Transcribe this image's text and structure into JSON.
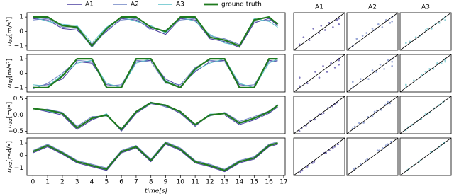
{
  "chart_data": [
    {
      "type": "line",
      "ylabel": {
        "symbol": "u",
        "sub": "ax",
        "unit": "[m/s²]"
      },
      "x": [
        0,
        1,
        2,
        3,
        4,
        5,
        6,
        7,
        8,
        9,
        10,
        11,
        12,
        13,
        14,
        15,
        16,
        16.6
      ],
      "xlim": [
        -0.4,
        17.1
      ],
      "ylim": [
        -1.3,
        1.3
      ],
      "yticks": [
        {
          "value": -1,
          "label": "−1"
        },
        0,
        1
      ],
      "series": [
        {
          "name": "A1",
          "color": "#4a3f9f",
          "width": 1,
          "values": [
            0.9,
            0.8,
            0.2,
            0.1,
            -0.9,
            0,
            0.9,
            0.8,
            0.2,
            -0.2,
            0.9,
            0.8,
            -0.5,
            -0.7,
            -1.1,
            0.6,
            0.9,
            0.4
          ]
        },
        {
          "name": "A2",
          "color": "#6d82c4",
          "width": 1,
          "values": [
            0.8,
            0.9,
            0.3,
            0.2,
            -1.1,
            0.1,
            0.8,
            0.9,
            0.1,
            0.1,
            0.8,
            0.9,
            -0.3,
            -0.5,
            -0.9,
            0.7,
            0.8,
            0.6
          ]
        },
        {
          "name": "A3",
          "color": "#5bbfc8",
          "width": 1,
          "values": [
            1,
            0.7,
            0.5,
            0.4,
            -0.8,
            0.3,
            1,
            0.7,
            0.4,
            -0.1,
            1,
            0.7,
            -0.2,
            -0.8,
            -1,
            0.9,
            0.7,
            0.3
          ]
        },
        {
          "name": "ground truth",
          "color": "#1f7a1f",
          "width": 2.2,
          "values": [
            1,
            1,
            0.4,
            0.3,
            -1,
            0.2,
            1,
            1,
            0.3,
            0,
            1,
            1,
            -0.4,
            -0.6,
            -1,
            0.8,
            1,
            0.5
          ]
        }
      ]
    },
    {
      "type": "line",
      "ylabel": {
        "symbol": "u",
        "sub": "ay",
        "unit": "[m/s²]"
      },
      "x": [
        0,
        1,
        2,
        3,
        4,
        5,
        6,
        7,
        8,
        9,
        10,
        11,
        12,
        13,
        14,
        15,
        16,
        16.6
      ],
      "xlim": [
        -0.4,
        17.1
      ],
      "ylim": [
        -1.3,
        1.3
      ],
      "yticks": [
        {
          "value": -1,
          "label": "−1"
        },
        0,
        1
      ],
      "series": [
        {
          "color": "#4a3f9f",
          "width": 1,
          "values": [
            -0.9,
            -0.8,
            -0.4,
            0.8,
            0.7,
            -0.8,
            -0.9,
            0.8,
            0.9,
            -0.4,
            -0.9,
            0.1,
            0.8,
            0.9,
            -0.8,
            -0.9,
            0.9,
            0.8
          ]
        },
        {
          "color": "#6d82c4",
          "width": 1,
          "values": [
            -1.1,
            -0.7,
            0,
            0.9,
            0.8,
            -0.9,
            -0.8,
            0.9,
            0.8,
            -0.7,
            -0.8,
            0.4,
            0.9,
            0.8,
            -0.9,
            -0.8,
            0.8,
            0.9
          ]
        },
        {
          "color": "#5bbfc8",
          "width": 1,
          "values": [
            -0.8,
            -0.9,
            -0.1,
            0.7,
            0.9,
            -0.7,
            -1,
            0.7,
            1,
            -0.5,
            -1,
            0.2,
            0.7,
            1,
            -0.7,
            -1,
            0.7,
            1
          ]
        },
        {
          "color": "#1f7a1f",
          "width": 2.2,
          "values": [
            -1,
            -1,
            -0.2,
            1,
            1,
            -1,
            -1,
            1,
            1,
            -0.6,
            -1,
            0.3,
            1,
            1,
            -1,
            -1,
            1,
            1
          ]
        }
      ]
    },
    {
      "type": "line",
      "ylabel": {
        "symbol": "u",
        "sub": "az",
        "unit": "[m/s]"
      },
      "x": [
        0,
        1,
        2,
        3,
        4,
        5,
        6,
        7,
        8,
        9,
        10,
        11,
        12,
        13,
        14,
        15,
        16,
        16.6
      ],
      "xlim": [
        -0.4,
        17.1
      ],
      "ylim": [
        -0.58,
        0.58
      ],
      "yticks": [
        {
          "value": -0.5,
          "label": "−0.5"
        },
        {
          "value": 0,
          "label": "0.0"
        },
        0.5
      ],
      "series": [
        {
          "color": "#4a3f9f",
          "width": 1,
          "values": [
            0.2,
            0.1,
            0,
            -0.45,
            -0.15,
            0.02,
            -0.5,
            0.05,
            0.35,
            0.28,
            0.05,
            -0.35,
            0.02,
            0,
            -0.3,
            -0.15,
            0.05,
            0.25
          ]
        },
        {
          "color": "#6d82c4",
          "width": 1,
          "values": [
            0.15,
            0.18,
            0.08,
            -0.35,
            -0.05,
            -0.03,
            -0.42,
            0.12,
            0.4,
            0.25,
            0.12,
            -0.28,
            -0.03,
            0.08,
            -0.2,
            -0.05,
            0.12,
            0.32
          ]
        },
        {
          "color": "#5bbfc8",
          "width": 1,
          "values": [
            0.22,
            0.12,
            0.04,
            -0.38,
            -0.12,
            0.04,
            -0.47,
            0.08,
            0.36,
            0.32,
            0.08,
            -0.32,
            0.03,
            0.04,
            -0.27,
            -0.12,
            0.08,
            0.28
          ]
        },
        {
          "color": "#1f7a1f",
          "width": 2.2,
          "values": [
            0.2,
            0.15,
            0.05,
            -0.4,
            -0.1,
            0,
            -0.45,
            0.1,
            0.38,
            0.3,
            0.1,
            -0.3,
            0,
            0.05,
            -0.25,
            -0.1,
            0.1,
            0.3
          ]
        }
      ]
    },
    {
      "type": "line",
      "ylabel": {
        "symbol": "u",
        "sub": "wz",
        "unit": "[rad/s]"
      },
      "x": [
        0,
        1,
        2,
        3,
        4,
        5,
        6,
        7,
        8,
        9,
        10,
        11,
        12,
        13,
        14,
        15,
        16,
        16.6
      ],
      "xlim": [
        -0.4,
        17.1
      ],
      "ylim": [
        -1.6,
        1.4
      ],
      "yticks": [
        {
          "value": -1,
          "label": "−1"
        },
        0,
        1
      ],
      "xticks": [
        0,
        1,
        2,
        3,
        4,
        5,
        6,
        7,
        8,
        9,
        10,
        11,
        12,
        13,
        14,
        15,
        16,
        17
      ],
      "xlabel": "time[s]",
      "series": [
        {
          "color": "#4a3f9f",
          "width": 1,
          "values": [
            0.2,
            0.7,
            0.1,
            -0.6,
            -0.9,
            -1.2,
            0.2,
            0.6,
            -0.5,
            0.9,
            0.4,
            -0.6,
            -0.9,
            -1.3,
            -0.6,
            -0.3,
            0.7,
            0.9
          ]
        },
        {
          "color": "#6d82c4",
          "width": 1,
          "values": [
            0.4,
            0.9,
            0.3,
            -0.4,
            -0.7,
            -1,
            0.4,
            0.8,
            -0.3,
            1.1,
            0.6,
            -0.4,
            -0.7,
            -1.1,
            -0.4,
            -0.1,
            0.9,
            1.1
          ]
        },
        {
          "color": "#5bbfc8",
          "width": 1,
          "values": [
            0.3,
            0.8,
            0.2,
            -0.5,
            -0.8,
            -1.1,
            0.3,
            0.7,
            -0.4,
            1,
            0.5,
            -0.5,
            -0.8,
            -1.2,
            -0.5,
            -0.2,
            0.8,
            1
          ]
        },
        {
          "color": "#1f7a1f",
          "width": 2.2,
          "values": [
            0.3,
            0.8,
            0.2,
            -0.5,
            -0.8,
            -1.1,
            0.3,
            0.7,
            -0.4,
            1,
            0.5,
            -0.5,
            -0.8,
            -1.2,
            -0.5,
            -0.2,
            0.8,
            1
          ]
        }
      ]
    },
    {
      "type": "scatter",
      "title": "A1",
      "color": "#4a3f9f",
      "xlim": [
        -1.3,
        1.3
      ],
      "ylim": [
        -1.3,
        1.3
      ],
      "x": [
        -1,
        -0.8,
        -0.5,
        -0.3,
        0,
        0.1,
        0.3,
        0.5,
        0.7,
        0.9,
        1,
        1
      ],
      "y": [
        -0.9,
        -0.4,
        -0.6,
        0.2,
        -0.1,
        0.4,
        0.1,
        0.6,
        0.3,
        0.8,
        0.9,
        0.5
      ]
    },
    {
      "type": "scatter",
      "title": "A2",
      "color": "#6d82c4",
      "xlim": [
        -1.3,
        1.3
      ],
      "ylim": [
        -1.3,
        1.3
      ],
      "x": [
        -1,
        -0.8,
        -0.5,
        -0.3,
        0,
        0.1,
        0.3,
        0.5,
        0.7,
        0.9,
        1,
        1
      ],
      "y": [
        -1,
        -0.5,
        -0.3,
        -0.1,
        0.2,
        0.1,
        0.5,
        0.3,
        0.8,
        0.6,
        1,
        0.7
      ]
    },
    {
      "type": "scatter",
      "title": "A3",
      "color": "#5bbfc8",
      "xlim": [
        -1.3,
        1.3
      ],
      "ylim": [
        -1.3,
        1.3
      ],
      "x": [
        -1,
        -0.8,
        -0.5,
        -0.3,
        0,
        0.1,
        0.3,
        0.5,
        0.7,
        0.9,
        1,
        1
      ],
      "y": [
        -0.8,
        -0.7,
        -0.4,
        -0.3,
        0.1,
        0.2,
        0.2,
        0.5,
        0.6,
        0.9,
        0.8,
        1
      ]
    },
    {
      "type": "scatter",
      "color": "#4a3f9f",
      "xlim": [
        -1.3,
        1.3
      ],
      "ylim": [
        -1.3,
        1.3
      ],
      "x": [
        -1,
        -1,
        -0.6,
        -0.2,
        0,
        0.2,
        0.4,
        0.6,
        0.8,
        1,
        1,
        1
      ],
      "y": [
        -0.9,
        -0.3,
        -0.7,
        0.1,
        -0.3,
        0.5,
        0.1,
        0.7,
        0.4,
        0.9,
        0.6,
        1
      ]
    },
    {
      "type": "scatter",
      "color": "#6d82c4",
      "xlim": [
        -1.3,
        1.3
      ],
      "ylim": [
        -1.3,
        1.3
      ],
      "x": [
        -1,
        -1,
        -0.6,
        -0.2,
        0,
        0.2,
        0.4,
        0.6,
        0.8,
        1,
        1,
        1
      ],
      "y": [
        -1,
        -0.6,
        -0.4,
        -0.4,
        0.2,
        0.1,
        0.6,
        0.3,
        0.9,
        0.8,
        1,
        0.5
      ]
    },
    {
      "type": "scatter",
      "color": "#5bbfc8",
      "xlim": [
        -1.3,
        1.3
      ],
      "ylim": [
        -1.3,
        1.3
      ],
      "x": [
        -1,
        -1,
        -0.6,
        -0.2,
        0,
        0.2,
        0.4,
        0.6,
        0.8,
        1,
        1,
        1
      ],
      "y": [
        -0.8,
        -1,
        -0.5,
        -0.1,
        0.1,
        0.3,
        0.3,
        0.7,
        0.7,
        0.9,
        1,
        0.8
      ]
    },
    {
      "type": "scatter",
      "color": "#4a3f9f",
      "xlim": [
        -0.58,
        0.58
      ],
      "ylim": [
        -0.58,
        0.58
      ],
      "x": [
        -0.45,
        -0.4,
        -0.3,
        -0.2,
        -0.1,
        0,
        0.05,
        0.1,
        0.2,
        0.3,
        0.35,
        0.4
      ],
      "y": [
        -0.5,
        -0.42,
        -0.33,
        -0.18,
        -0.14,
        0.02,
        0.02,
        0.06,
        0.22,
        0.27,
        0.33,
        0.38
      ]
    },
    {
      "type": "scatter",
      "color": "#6d82c4",
      "xlim": [
        -0.58,
        0.58
      ],
      "ylim": [
        -0.58,
        0.58
      ],
      "x": [
        -0.45,
        -0.4,
        -0.3,
        -0.2,
        -0.1,
        0,
        0.05,
        0.1,
        0.2,
        0.3,
        0.35,
        0.4
      ],
      "y": [
        -0.42,
        -0.36,
        -0.25,
        -0.24,
        -0.06,
        -0.03,
        0.1,
        0.14,
        0.16,
        0.32,
        0.4,
        0.36
      ]
    },
    {
      "type": "scatter",
      "color": "#5bbfc8",
      "xlim": [
        -0.58,
        0.58
      ],
      "ylim": [
        -0.58,
        0.58
      ],
      "x": [
        -0.45,
        -0.4,
        -0.3,
        -0.2,
        -0.1,
        0,
        0.05,
        0.1,
        0.2,
        0.3,
        0.35,
        0.4
      ],
      "y": [
        -0.47,
        -0.38,
        -0.3,
        -0.2,
        -0.12,
        0.03,
        0.04,
        0.08,
        0.21,
        0.3,
        0.36,
        0.41
      ]
    },
    {
      "type": "scatter",
      "color": "#4a3f9f",
      "xlim": [
        -1.6,
        1.4
      ],
      "ylim": [
        -1.6,
        1.4
      ],
      "x": [
        -1.2,
        -1.1,
        -0.8,
        -0.5,
        -0.4,
        0.2,
        0.3,
        0.5,
        0.7,
        0.8,
        1,
        1
      ],
      "y": [
        -1.3,
        -1.2,
        -0.9,
        -0.6,
        -0.5,
        0.2,
        0.2,
        0.4,
        0.6,
        0.7,
        0.9,
        0.9
      ]
    },
    {
      "type": "scatter",
      "color": "#6d82c4",
      "xlim": [
        -1.6,
        1.4
      ],
      "ylim": [
        -1.6,
        1.4
      ],
      "x": [
        -1.2,
        -1.1,
        -0.8,
        -0.5,
        -0.4,
        0.2,
        0.3,
        0.5,
        0.7,
        0.8,
        1,
        1
      ],
      "y": [
        -1.1,
        -1,
        -0.7,
        -0.4,
        -0.3,
        0.4,
        0.4,
        0.6,
        0.8,
        0.9,
        1.1,
        1.1
      ]
    },
    {
      "type": "scatter",
      "color": "#5bbfc8",
      "xlim": [
        -1.6,
        1.4
      ],
      "ylim": [
        -1.6,
        1.4
      ],
      "x": [
        -1.2,
        -1.1,
        -0.8,
        -0.5,
        -0.4,
        0.2,
        0.3,
        0.5,
        0.7,
        0.8,
        1,
        1
      ],
      "y": [
        -1.2,
        -1.1,
        -0.8,
        -0.5,
        -0.4,
        0.3,
        0.3,
        0.5,
        0.7,
        0.8,
        1,
        1
      ]
    }
  ]
}
